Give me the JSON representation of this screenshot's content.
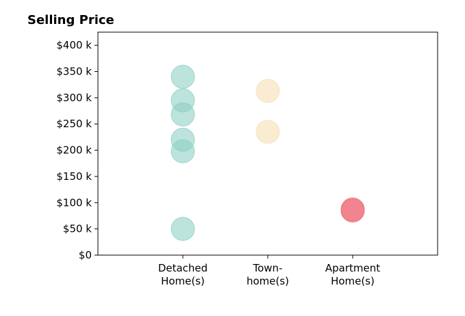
{
  "chart_data": {
    "type": "scatter",
    "title": "Selling Price",
    "xlabel": "",
    "ylabel": "",
    "categories": [
      [
        "Detached",
        "Home(s)"
      ],
      [
        "Town-",
        "home(s)"
      ],
      [
        "Apartment",
        "Home(s)"
      ]
    ],
    "xlim": [
      -1,
      3
    ],
    "ylim": [
      0,
      425000
    ],
    "y_ticks": [
      0,
      50000,
      100000,
      150000,
      200000,
      250000,
      300000,
      350000,
      400000
    ],
    "y_tick_labels": [
      "$0",
      "$50 k",
      "$100 k",
      "$150 k",
      "$200 k",
      "$250 k",
      "$300 k",
      "$350 k",
      "$400 k"
    ],
    "grid": false,
    "series": [
      {
        "category": 0,
        "color": "#8fd1c4",
        "values": [
          340000,
          295000,
          268000,
          220000,
          198000,
          50000
        ]
      },
      {
        "category": 1,
        "color": "#f6e0b5",
        "values": [
          313000,
          235000
        ]
      },
      {
        "category": 2,
        "color": "#ee6e79",
        "values": [
          87000,
          85000
        ]
      }
    ]
  }
}
